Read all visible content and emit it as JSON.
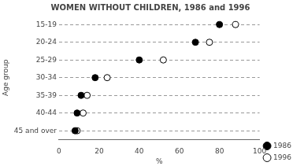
{
  "chart_data": {
    "type": "dot",
    "orientation": "horizontal",
    "title": "WOMEN WITHOUT CHILDREN, 1986 and 1996",
    "x_label": "%",
    "y_label": "Age group",
    "categories": [
      "15-19",
      "20-24",
      "25-29",
      "30-34",
      "35-39",
      "40-44",
      "45 and over"
    ],
    "series": [
      {
        "name": "1986",
        "color": "#000000",
        "marker": "filled",
        "values": [
          80,
          68,
          40,
          18,
          11,
          9,
          8
        ]
      },
      {
        "name": "1996",
        "color": "#ffffff",
        "marker": "open",
        "values": [
          88,
          75,
          52,
          24,
          14,
          12,
          9
        ]
      }
    ],
    "xlim": [
      0,
      100
    ],
    "xticks": [
      0,
      20,
      40,
      60,
      80,
      100
    ],
    "grid": true,
    "legend": "lower right"
  }
}
